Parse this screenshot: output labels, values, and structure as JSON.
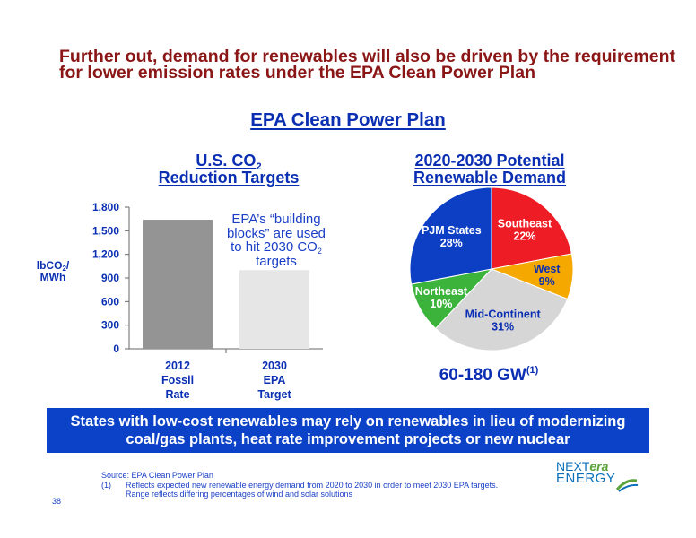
{
  "headline": "Further out, demand for renewables will also be driven by the requirement for lower emission rates under the EPA Clean Power Plan",
  "section_title": "EPA Clean Power Plan",
  "bar_panel": {
    "title_pre": "U.S. CO",
    "title_sub": "2",
    "title_line2": "Reduction Targets",
    "ylabel_pre": "lbCO",
    "ylabel_sub": "2",
    "ylabel_post": "/ MWh",
    "callout_pre": "EPA’s “building blocks” are used to hit 2030 CO",
    "callout_sub": "2",
    "callout_post": " targets"
  },
  "pie_panel": {
    "title_line1": "2020-2030 Potential",
    "title_line2": "Renewable Demand",
    "capacity_main": "60-180 GW",
    "capacity_footnote": "(1)"
  },
  "banner": "States with low-cost renewables may rely on renewables in lieu of modernizing coal/gas plants, heat rate improvement projects or new nuclear",
  "source": "Source: EPA Clean Power Plan",
  "footnote": {
    "marker": "(1)",
    "line1": "Reflects expected new renewable energy demand from 2020 to 2030 in order to meet 2030 EPA targets.",
    "line2": "Range reflects differing percentages of wind and solar solutions"
  },
  "page_number": "38",
  "logo": {
    "next": "NEXT",
    "era": "era",
    "energy": "ENERGY"
  },
  "chart_data": [
    {
      "type": "bar",
      "categories": [
        "2012\nFossil\nRate",
        "2030\nEPA\nTarget"
      ],
      "values": [
        1640,
        1000
      ],
      "colors": [
        "#949494",
        "#e6e6e6"
      ],
      "ylim": [
        0,
        1800
      ],
      "yticks": [
        "0",
        "300",
        "600",
        "900",
        "1,200",
        "1,500",
        "1,800"
      ],
      "grid": false
    },
    {
      "type": "pie",
      "slices": [
        {
          "label": "Southeast",
          "pct": "22%",
          "value": 22,
          "color": "#ee1c25",
          "text_color": "#ffffff"
        },
        {
          "label": "West",
          "pct": "9%",
          "value": 9,
          "color": "#f5a800",
          "text_color": "#0b2fb3"
        },
        {
          "label": "Mid-Continent",
          "pct": "31%",
          "value": 31,
          "color": "#d6d6d6",
          "text_color": "#0b2fb3"
        },
        {
          "label": "Northeast",
          "pct": "10%",
          "value": 10,
          "color": "#3cb43c",
          "text_color": "#ffffff"
        },
        {
          "label": "PJM States",
          "pct": "28%",
          "value": 28,
          "color": "#0c3fc4",
          "text_color": "#ffffff"
        }
      ]
    }
  ]
}
